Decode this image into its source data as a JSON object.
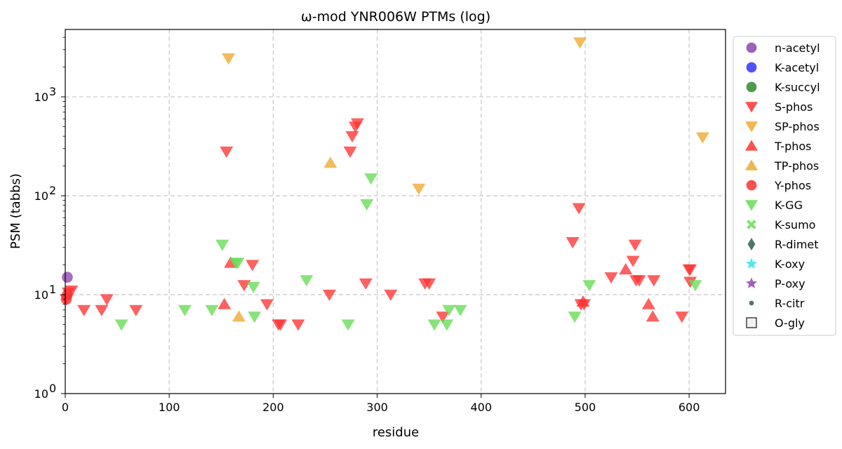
{
  "chart_data": {
    "type": "scatter",
    "title": "ω-mod YNR006W PTMs (log)",
    "xlabel": "residue",
    "ylabel": "PSM (tabbs)",
    "xlim": [
      0,
      635
    ],
    "ylim": [
      1,
      4800
    ],
    "yscale": "log",
    "x_ticks": [
      0,
      100,
      200,
      300,
      400,
      500,
      600
    ],
    "x_tick_labels": [
      "0",
      "100",
      "200",
      "300",
      "400",
      "500",
      "600"
    ],
    "y_ticks": [
      {
        "value": 1,
        "base": "10",
        "exp": "0"
      },
      {
        "value": 10,
        "base": "10",
        "exp": "1"
      },
      {
        "value": 100,
        "base": "10",
        "exp": "2"
      },
      {
        "value": 1000,
        "base": "10",
        "exp": "3"
      }
    ],
    "grid": true,
    "legend_position": "outside-right",
    "series": [
      {
        "name": "n-acetyl",
        "marker": "circle",
        "color": "#8e44ad",
        "points": [
          [
            2,
            15
          ]
        ]
      },
      {
        "name": "K-acetyl",
        "marker": "circle",
        "color": "#3333ff",
        "points": []
      },
      {
        "name": "K-succyl",
        "marker": "circle",
        "color": "#2e8b2e",
        "points": []
      },
      {
        "name": "S-phos",
        "marker": "triangle-down",
        "color": "#ff3333",
        "points": [
          [
            1,
            9
          ],
          [
            3,
            10.5
          ],
          [
            6,
            11
          ],
          [
            18,
            7
          ],
          [
            35,
            7
          ],
          [
            40,
            9
          ],
          [
            68,
            7
          ],
          [
            155,
            280
          ],
          [
            172,
            12.5
          ],
          [
            180,
            20
          ],
          [
            194,
            8
          ],
          [
            205,
            5
          ],
          [
            207,
            5
          ],
          [
            224,
            5
          ],
          [
            254,
            10
          ],
          [
            274,
            280
          ],
          [
            276,
            400
          ],
          [
            279,
            500
          ],
          [
            281,
            540
          ],
          [
            289,
            13
          ],
          [
            313,
            10
          ],
          [
            346,
            13
          ],
          [
            350,
            13
          ],
          [
            363,
            6
          ],
          [
            488,
            34
          ],
          [
            494,
            75
          ],
          [
            496,
            8
          ],
          [
            499,
            8
          ],
          [
            525,
            15
          ],
          [
            546,
            22
          ],
          [
            548,
            32
          ],
          [
            549,
            14
          ],
          [
            552,
            14
          ],
          [
            566,
            14
          ],
          [
            593,
            6
          ],
          [
            600,
            18
          ],
          [
            601,
            18
          ],
          [
            601,
            13.5
          ]
        ]
      },
      {
        "name": "SP-phos",
        "marker": "triangle-down",
        "color": "#f0a830",
        "points": [
          [
            157,
            2450
          ],
          [
            340,
            118
          ],
          [
            495,
            3550
          ],
          [
            613,
            390
          ]
        ]
      },
      {
        "name": "T-phos",
        "marker": "triangle-up",
        "color": "#ff3333",
        "points": [
          [
            153,
            8
          ],
          [
            159,
            21
          ],
          [
            498,
            8.5
          ],
          [
            539,
            18
          ],
          [
            561,
            8
          ],
          [
            565,
            6
          ]
        ]
      },
      {
        "name": "TP-phos",
        "marker": "triangle-up",
        "color": "#f0a830",
        "points": [
          [
            255,
            215
          ],
          [
            167,
            6
          ]
        ]
      },
      {
        "name": "Y-phos",
        "marker": "circle",
        "color": "#ff3333",
        "points": [
          [
            1,
            9
          ],
          [
            2,
            10
          ]
        ]
      },
      {
        "name": "K-GG",
        "marker": "triangle-down",
        "color": "#66dd55",
        "points": [
          [
            54,
            5
          ],
          [
            115,
            7
          ],
          [
            141,
            7
          ],
          [
            151,
            32
          ],
          [
            164,
            21
          ],
          [
            166,
            21
          ],
          [
            181,
            12
          ],
          [
            182,
            6
          ],
          [
            232,
            14
          ],
          [
            272,
            5
          ],
          [
            290,
            82
          ],
          [
            294,
            150
          ],
          [
            355,
            5
          ],
          [
            367,
            5
          ],
          [
            369,
            7
          ],
          [
            380,
            7
          ],
          [
            490,
            6
          ],
          [
            504,
            12.5
          ],
          [
            606,
            12.5
          ]
        ]
      },
      {
        "name": "K-sumo",
        "marker": "x",
        "color": "#66dd55",
        "points": []
      },
      {
        "name": "R-dimet",
        "marker": "diamond",
        "color": "#2f5f4a",
        "points": []
      },
      {
        "name": "K-oxy",
        "marker": "star",
        "color": "#33e6e6",
        "points": []
      },
      {
        "name": "P-oxy",
        "marker": "star",
        "color": "#8e44ad",
        "points": []
      },
      {
        "name": "R-citr",
        "marker": "small-circle",
        "color": "#2f5f4a",
        "points": []
      },
      {
        "name": "O-gly",
        "marker": "square-open",
        "color": "#333333",
        "points": []
      }
    ]
  }
}
